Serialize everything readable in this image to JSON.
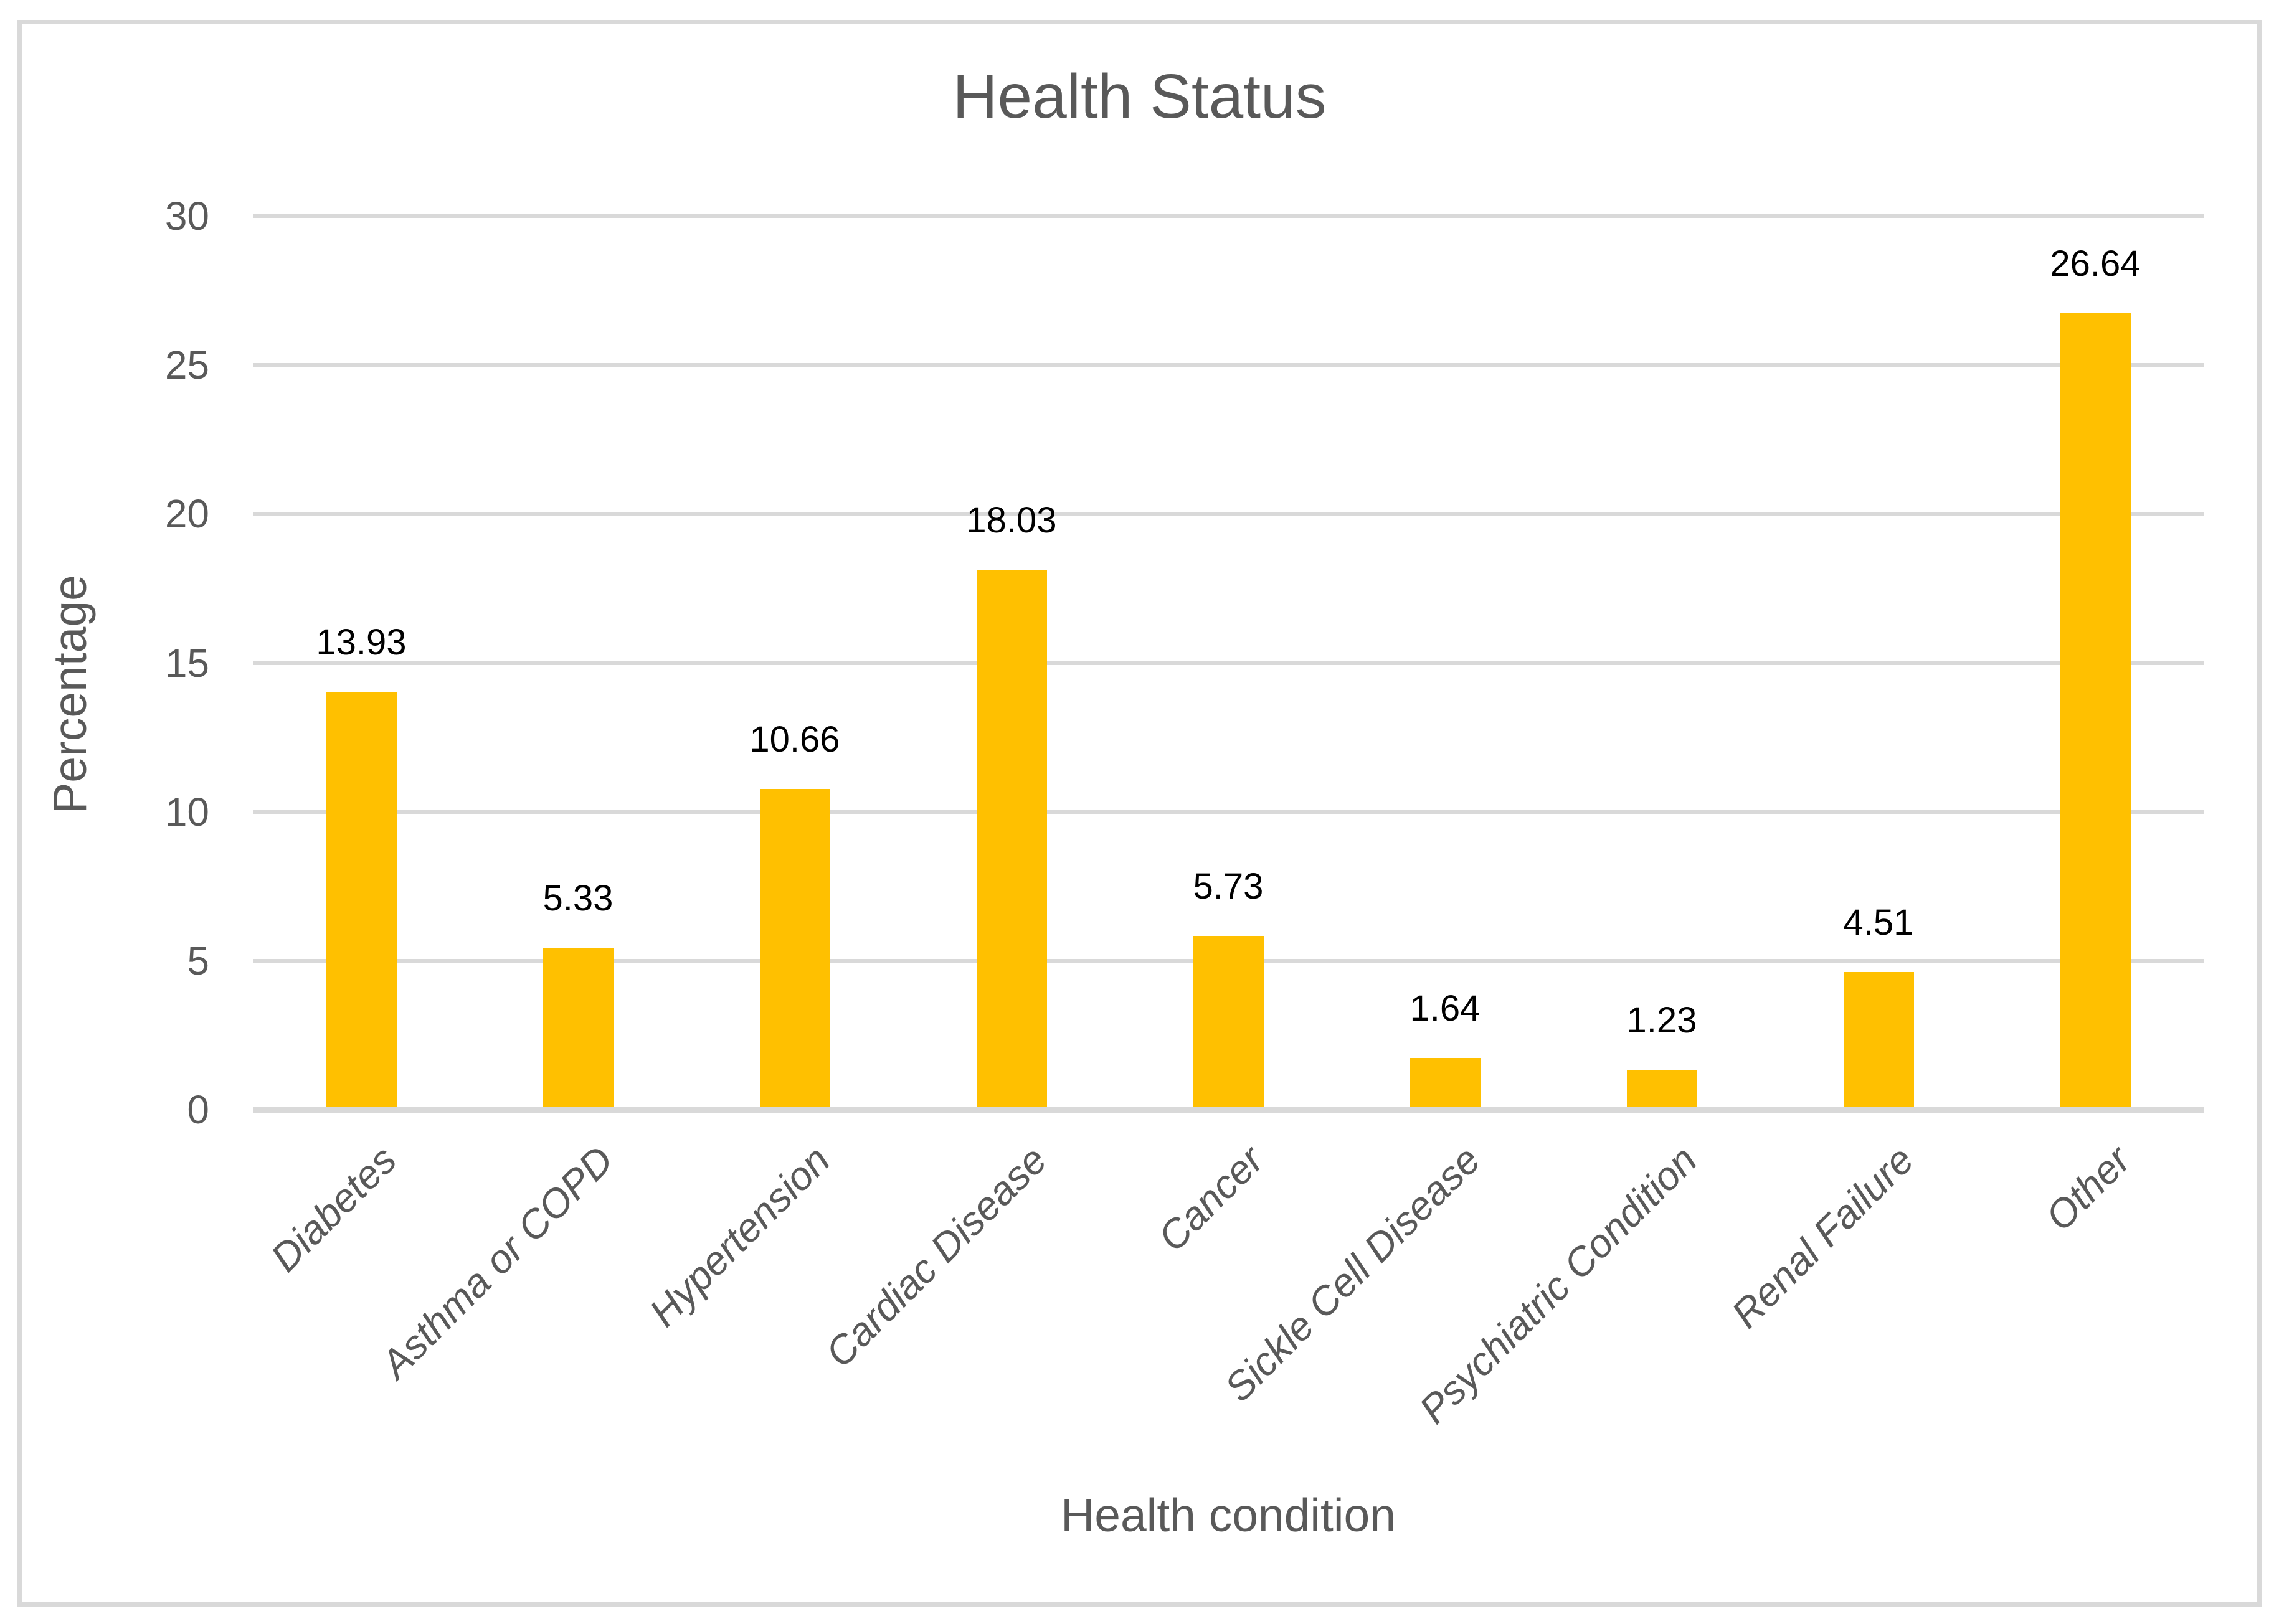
{
  "figure": {
    "border_color": "#d9d9d9",
    "background": "#ffffff"
  },
  "chart_data": {
    "type": "bar",
    "title": "Health Status",
    "xlabel": "Health condition",
    "ylabel": "Percentage",
    "categories": [
      "Diabetes",
      "Asthma or COPD",
      "Hypertension",
      "Cardiac Disease",
      "Cancer",
      "Sickle Cell Disease",
      "Psychiatric Condition",
      "Renal Failure",
      "Other"
    ],
    "values": [
      13.93,
      5.33,
      10.66,
      18.03,
      5.73,
      1.64,
      1.23,
      4.51,
      26.64
    ],
    "data_labels": [
      "13.93",
      "5.33",
      "10.66",
      "18.03",
      "5.73",
      "1.64",
      "1.23",
      "4.51",
      "26.64"
    ],
    "ylim": [
      0,
      30
    ],
    "yticks": [
      0,
      5,
      10,
      15,
      20,
      25,
      30
    ],
    "grid": true,
    "legend_position": "none",
    "bar_color": "#FFC000",
    "gridline_color": "#D9D9D9",
    "axis_line_color": "#D9D9D9",
    "text_color": "#595959",
    "data_label_color": "#000000"
  }
}
